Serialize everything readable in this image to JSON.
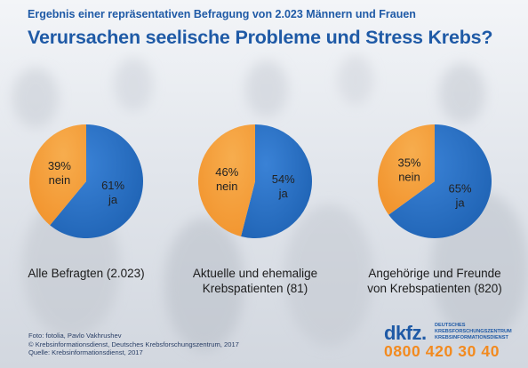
{
  "subtitle": "Ergebnis einer repräsentativen Befragung von 2.023 Männern und Frauen",
  "title": "Verursachen seelische Probleme und Stress Krebs?",
  "colors": {
    "ja": "#1f63b4",
    "nein": "#f2952f",
    "title": "#1f5aa6"
  },
  "chart_data": [
    {
      "type": "pie",
      "caption": "Alle Befragten (2.023)",
      "slices": [
        {
          "label": "ja",
          "percent_text": "61%",
          "value": 61
        },
        {
          "label": "nein",
          "percent_text": "39%",
          "value": 39
        }
      ]
    },
    {
      "type": "pie",
      "caption": "Aktuelle und ehemalige\nKrebspatienten (81)",
      "slices": [
        {
          "label": "ja",
          "percent_text": "54%",
          "value": 54
        },
        {
          "label": "nein",
          "percent_text": "46%",
          "value": 46
        }
      ]
    },
    {
      "type": "pie",
      "caption": "Angehörige und Freunde\nvon Krebspatienten (820)",
      "slices": [
        {
          "label": "ja",
          "percent_text": "65%",
          "value": 65
        },
        {
          "label": "nein",
          "percent_text": "35%",
          "value": 35
        }
      ]
    }
  ],
  "footer": {
    "source": "Foto: fotolia, Pavlo Vakhrushev\n© Krebsinformationsdienst, Deutsches Krebsforschungszentrum, 2017\nQuelle: Krebsinformationsdienst, 2017",
    "logo_text": "dkfz.",
    "logo_org": "DEUTSCHES\nKREBSFORSCHUNGSZENTRUM\nKREBSINFORMATIONSDIENST",
    "phone": "0800 420 30 40"
  }
}
